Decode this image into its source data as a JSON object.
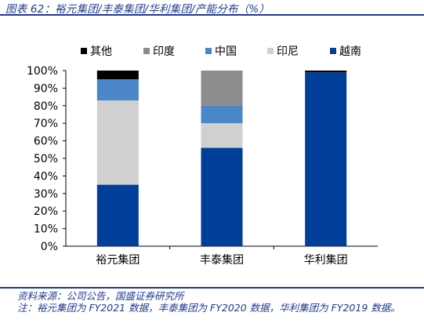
{
  "title": "图表 62：裕元集团/丰泰集团/华利集团/产能分布（%）",
  "notes": [
    "资料来源：公司公告，国盛证券研究所",
    "注：裕元集团为 FY2021 数据，丰泰集团为 FY2020 数据，华利集团为 FY2019 数据。"
  ],
  "chart_data": {
    "type": "bar",
    "stacked": true,
    "categories": [
      "裕元集团",
      "丰泰集团",
      "华利集团"
    ],
    "series": [
      {
        "name": "越南",
        "color": "#003f99",
        "values": [
          35,
          56,
          99
        ]
      },
      {
        "name": "印尼",
        "color": "#d0d0d0",
        "values": [
          48,
          14,
          0
        ]
      },
      {
        "name": "中国",
        "color": "#4a86c8",
        "values": [
          12,
          10,
          0
        ]
      },
      {
        "name": "印度",
        "color": "#8c8c8c",
        "values": [
          0,
          20,
          0
        ]
      },
      {
        "name": "其他",
        "color": "#000000",
        "values": [
          5,
          0,
          1
        ]
      }
    ],
    "legend_order": [
      "其他",
      "印度",
      "中国",
      "印尼",
      "越南"
    ],
    "y_ticks": [
      "0%",
      "10%",
      "20%",
      "30%",
      "40%",
      "50%",
      "60%",
      "70%",
      "80%",
      "90%",
      "100%"
    ],
    "ylim": [
      0,
      100
    ],
    "legend_position": "top",
    "grid": false
  }
}
